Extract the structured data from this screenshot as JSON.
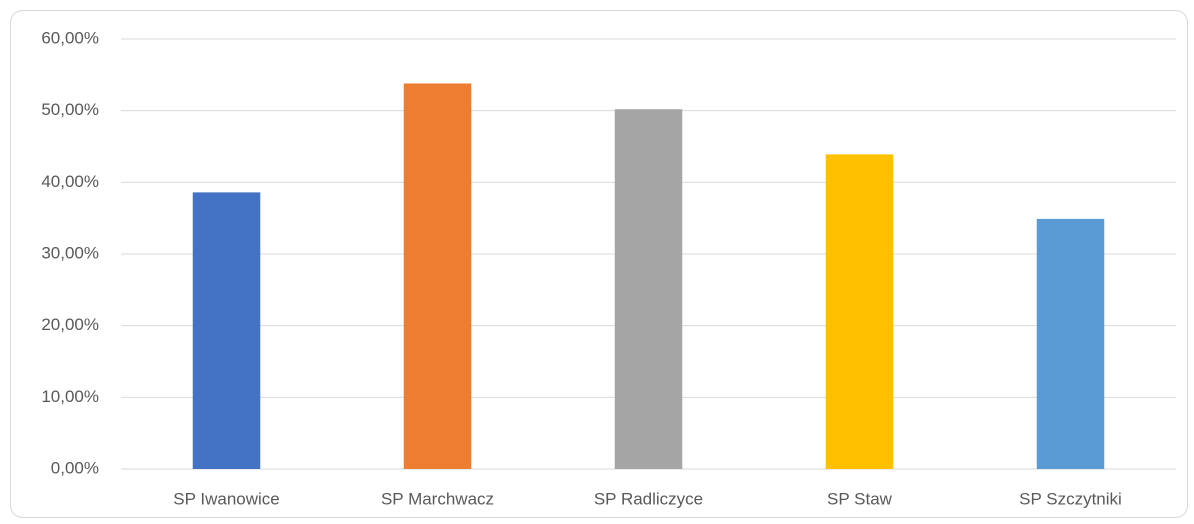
{
  "chart_data": {
    "type": "bar",
    "categories": [
      "SP Iwanowice",
      "SP Marchwacz",
      "SP Radliczyce",
      "SP Staw",
      "SP Szczytniki"
    ],
    "values": [
      38.6,
      53.8,
      50.2,
      43.9,
      34.9
    ],
    "colors": [
      "#4472c4",
      "#ed7d31",
      "#a5a5a5",
      "#ffc000",
      "#5b9bd5"
    ],
    "ylim": [
      0,
      60
    ],
    "yticks": [
      {
        "value": 0,
        "label": "0,00%"
      },
      {
        "value": 10,
        "label": "10,00%"
      },
      {
        "value": 20,
        "label": "20,00%"
      },
      {
        "value": 30,
        "label": "30,00%"
      },
      {
        "value": 40,
        "label": "40,00%"
      },
      {
        "value": 50,
        "label": "50,00%"
      },
      {
        "value": 60,
        "label": "60,00%"
      }
    ],
    "grid": true
  }
}
